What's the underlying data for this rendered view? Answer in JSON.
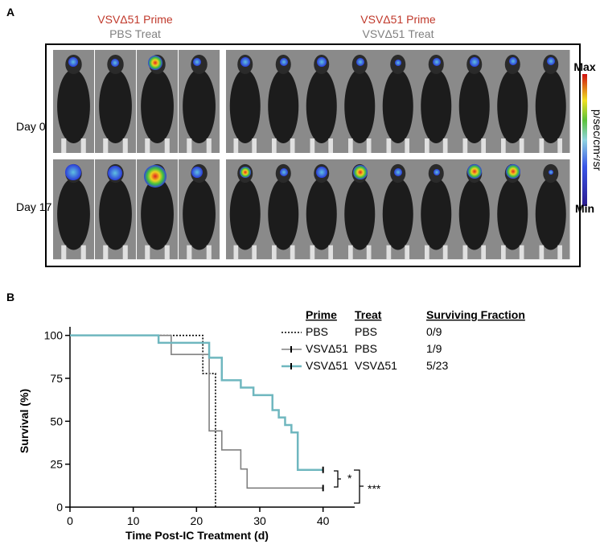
{
  "panel_a": {
    "label": "A",
    "groups": [
      {
        "prime": "VSVΔ51 Prime",
        "treat": "PBS Treat"
      },
      {
        "prime": "VSVΔ51 Prime",
        "treat": "VSVΔ51 Treat"
      }
    ],
    "rows": [
      "Day 0",
      "Day 17"
    ],
    "colorbar": {
      "max": "Max",
      "min": "Min",
      "unit": "p/sec/cm²/sr"
    }
  },
  "chart_data": {
    "type": "step",
    "panel_label": "B",
    "ylabel": "Survival (%)",
    "xlabel": "Time Post-IC Treatment (d)",
    "xlim": [
      0,
      45
    ],
    "xticks": [
      0,
      10,
      20,
      30,
      40
    ],
    "ylim": [
      0,
      105
    ],
    "yticks": [
      0,
      25,
      50,
      75,
      100
    ],
    "legend_headers": [
      "Prime",
      "Treat",
      "Surviving Fraction"
    ],
    "series": [
      {
        "prime": "PBS",
        "treat": "PBS",
        "surviving_fraction": "0/9",
        "color": "#000000",
        "line_style": "dotted",
        "censored": false,
        "x": [
          0,
          21,
          23
        ],
        "values": [
          100,
          77.8,
          0
        ]
      },
      {
        "prime": "VSVΔ51",
        "treat": "PBS",
        "surviving_fraction": "1/9",
        "color": "#808080",
        "line_style": "solid",
        "censored": true,
        "x": [
          0,
          16,
          22,
          24,
          27,
          28,
          40
        ],
        "values": [
          100,
          88.9,
          44.4,
          33.3,
          22.2,
          11.1,
          11.1
        ]
      },
      {
        "prime": "VSVΔ51",
        "treat": "VSVΔ51",
        "surviving_fraction": "5/23",
        "color": "#6fb7bf",
        "line_style": "solid",
        "censored": true,
        "x": [
          0,
          14,
          22,
          24,
          27,
          29,
          32,
          33,
          34,
          35,
          36,
          40
        ],
        "values": [
          100,
          95.7,
          87.0,
          73.9,
          69.6,
          65.2,
          56.5,
          52.2,
          47.8,
          43.5,
          21.7,
          21.7
        ]
      }
    ],
    "annotations": [
      "*",
      "***"
    ]
  }
}
